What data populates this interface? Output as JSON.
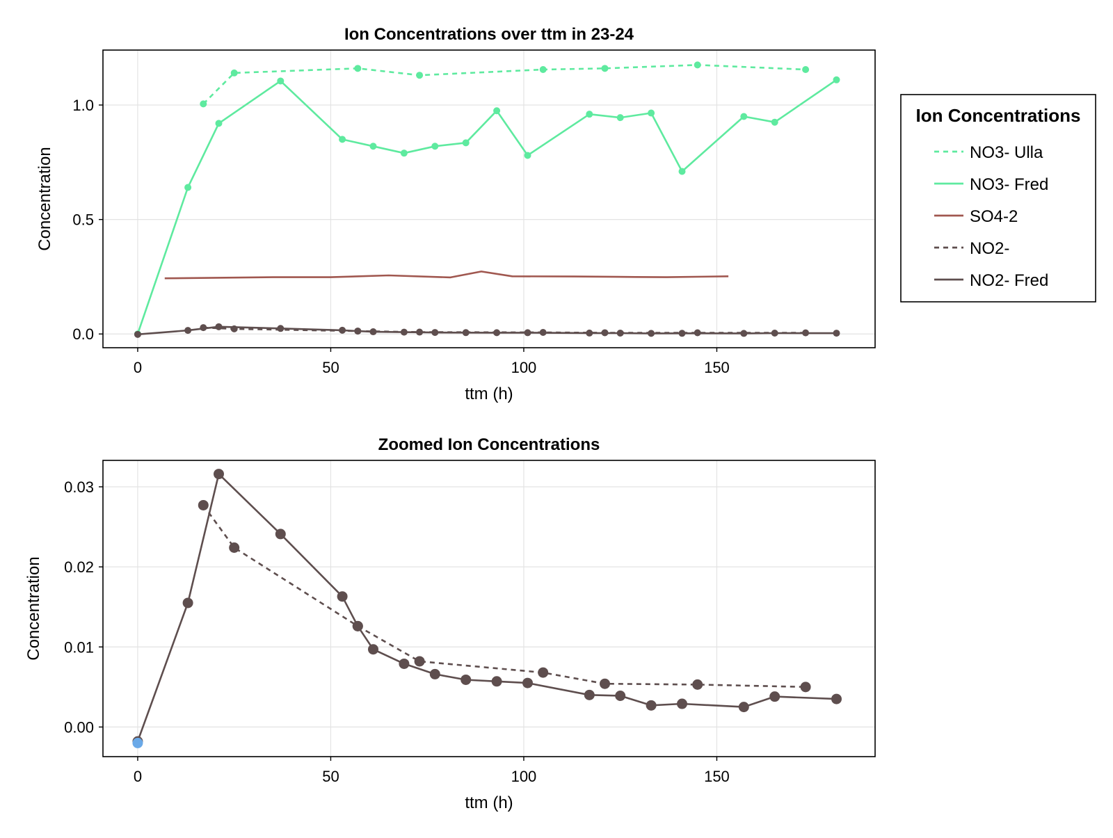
{
  "chart_data": [
    {
      "type": "line",
      "title": "Ion Concentrations over ttm in 23-24",
      "xlabel": "ttm (h)",
      "ylabel": "Concentration",
      "xlim": [
        -9,
        191
      ],
      "ylim": [
        -0.06,
        1.24
      ],
      "xticks": [
        0,
        50,
        100,
        150
      ],
      "yticks": [
        0.0,
        0.5,
        1.0
      ],
      "ytick_labels": [
        "0.0",
        "0.5",
        "1.0"
      ],
      "grid": true,
      "legend": {
        "title": "Ion Concentrations",
        "placement": "right",
        "entries": [
          "NO3- Ulla",
          "NO3- Fred",
          "SO4-2",
          "NO2-",
          "NO2- Fred"
        ]
      },
      "series": [
        {
          "name": "NO3- Ulla",
          "color": "#5eea9f",
          "dashed": true,
          "markers": true,
          "x": [
            17,
            25,
            57,
            73,
            105,
            121,
            145,
            173
          ],
          "y": [
            1.005,
            1.14,
            1.16,
            1.13,
            1.155,
            1.16,
            1.175,
            1.155
          ]
        },
        {
          "name": "NO3- Fred",
          "color": "#5eea9f",
          "dashed": false,
          "markers": true,
          "x": [
            0,
            13,
            21,
            37,
            53,
            61,
            69,
            77,
            85,
            93,
            101,
            117,
            125,
            133,
            141,
            157,
            165,
            181
          ],
          "y": [
            0.0,
            0.64,
            0.92,
            1.105,
            0.85,
            0.82,
            0.79,
            0.82,
            0.835,
            0.975,
            0.78,
            0.96,
            0.945,
            0.965,
            0.71,
            0.95,
            0.925,
            1.11
          ]
        },
        {
          "name": "SO4-2",
          "color": "#a0574f",
          "dashed": false,
          "markers": false,
          "x": [
            7,
            35,
            50,
            65,
            81,
            89,
            97,
            113,
            129,
            137,
            153
          ],
          "y": [
            0.243,
            0.248,
            0.248,
            0.256,
            0.247,
            0.273,
            0.252,
            0.251,
            0.249,
            0.248,
            0.252
          ]
        },
        {
          "name": "NO2-",
          "color": "#5e4e4e",
          "dashed": true,
          "markers": true,
          "x": [
            17,
            25,
            57,
            73,
            105,
            121,
            145,
            173
          ],
          "y": [
            0.0277,
            0.0224,
            0.0126,
            0.0082,
            0.0068,
            0.0054,
            0.0053,
            0.005
          ]
        },
        {
          "name": "NO2- Fred",
          "color": "#5e4e4e",
          "dashed": false,
          "markers": true,
          "x": [
            0,
            13,
            21,
            37,
            53,
            57,
            61,
            69,
            77,
            85,
            93,
            101,
            117,
            125,
            133,
            141,
            157,
            165,
            181
          ],
          "y": [
            -0.0018,
            0.0155,
            0.0316,
            0.0241,
            0.0163,
            0.0126,
            0.0097,
            0.0079,
            0.0066,
            0.0059,
            0.0057,
            0.0055,
            0.004,
            0.0039,
            0.0027,
            0.0029,
            0.0025,
            0.0038,
            0.0035
          ]
        }
      ]
    },
    {
      "type": "line",
      "title": "Zoomed Ion Concentrations",
      "xlabel": "ttm (h)",
      "ylabel": "Concentration",
      "xlim": [
        -9,
        191
      ],
      "ylim": [
        -0.0037,
        0.0333
      ],
      "xticks": [
        0,
        50,
        100,
        150
      ],
      "yticks": [
        0.0,
        0.01,
        0.02,
        0.03
      ],
      "ytick_labels": [
        "0.00",
        "0.01",
        "0.02",
        "0.03"
      ],
      "grid": true,
      "series": [
        {
          "name": "NO2-",
          "color": "#5e4e4e",
          "dashed": true,
          "markers": true,
          "x": [
            17,
            25,
            57,
            73,
            105,
            121,
            145,
            173
          ],
          "y": [
            0.0277,
            0.0224,
            0.0126,
            0.0082,
            0.0068,
            0.0054,
            0.0053,
            0.005
          ]
        },
        {
          "name": "NO2- Fred",
          "color": "#5e4e4e",
          "dashed": false,
          "markers": true,
          "x": [
            0,
            13,
            21,
            37,
            53,
            57,
            61,
            69,
            77,
            85,
            93,
            101,
            117,
            125,
            133,
            141,
            157,
            165,
            181
          ],
          "y": [
            -0.0018,
            0.0155,
            0.0316,
            0.0241,
            0.0163,
            0.0126,
            0.0097,
            0.0079,
            0.0066,
            0.0059,
            0.0057,
            0.0055,
            0.004,
            0.0039,
            0.0027,
            0.0029,
            0.0025,
            0.0038,
            0.0035
          ]
        },
        {
          "color": "#6aa9e8",
          "dashed": false,
          "markers": true,
          "x": [
            0
          ],
          "y": [
            -0.002
          ]
        }
      ]
    }
  ]
}
